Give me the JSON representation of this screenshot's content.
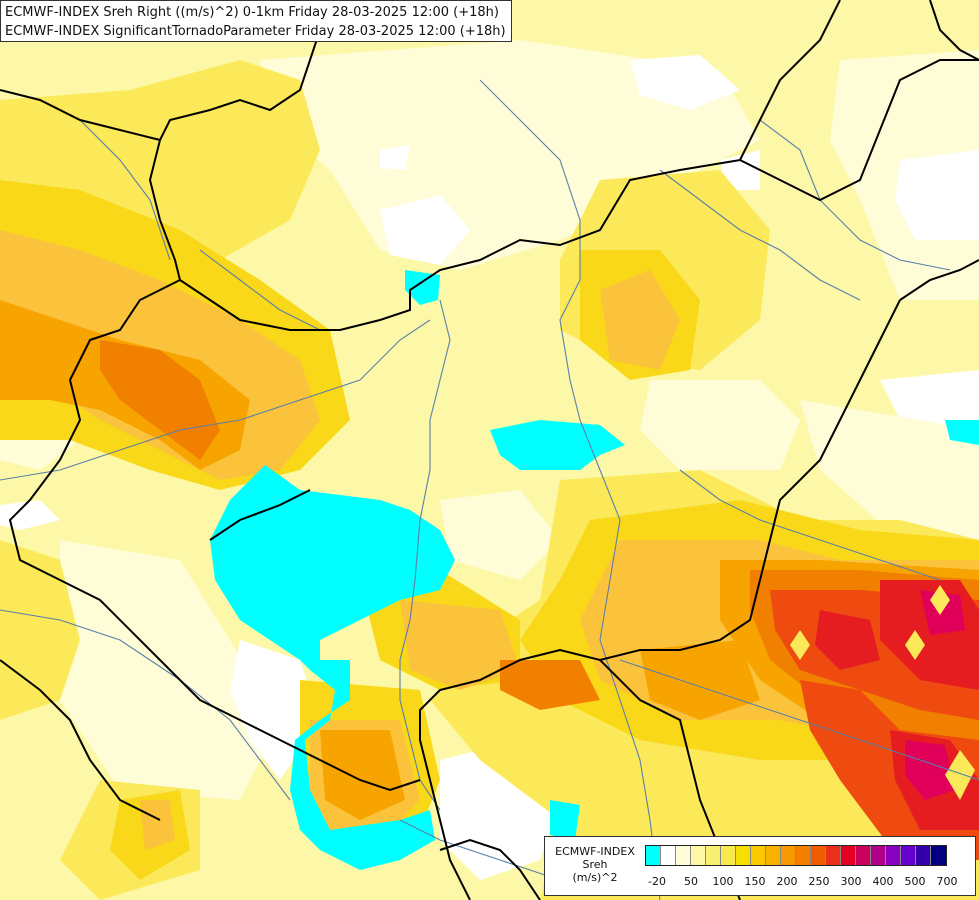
{
  "header": {
    "line1": "ECMWF-INDEX Sreh Right ((m/s)^2) 0-1km Friday 28-03-2025 12:00 (+18h)",
    "line2": "ECMWF-INDEX SignificantTornadoParameter Friday 28-03-2025 12:00 (+18h)"
  },
  "legend": {
    "model": "ECMWF-INDEX",
    "parameter": "Sreh",
    "unit": "(m/s)^2",
    "colors": [
      "#00ffff",
      "#ffffff",
      "#fffdd8",
      "#fcf8a8",
      "#faf070",
      "#f9e94c",
      "#f5df00",
      "#fbc900",
      "#f8b200",
      "#f59a00",
      "#f57d00",
      "#f15c00",
      "#ea3018",
      "#e40022",
      "#c9005e",
      "#b10088",
      "#8c00c0",
      "#6600cc",
      "#3300aa",
      "#000080"
    ],
    "ticks": [
      "-20",
      "50",
      "100",
      "150",
      "200",
      "250",
      "300",
      "400",
      "500",
      "700"
    ]
  },
  "map": {
    "background_color": "#fcf8a8",
    "border_color": "#000000",
    "river_color": "#5a7fa8",
    "shading_colors": {
      "white": "#ffffff",
      "cyan": "#00ffff",
      "pale_yellow": "#fffdd8",
      "yellow": "#fbe95a",
      "deep_yellow": "#f8d818",
      "light_orange": "#fbc23c",
      "orange": "#f8a400",
      "dark_orange": "#f28000",
      "red_orange": "#ef4a10",
      "red": "#e51d20",
      "magenta": "#e0005a"
    }
  }
}
